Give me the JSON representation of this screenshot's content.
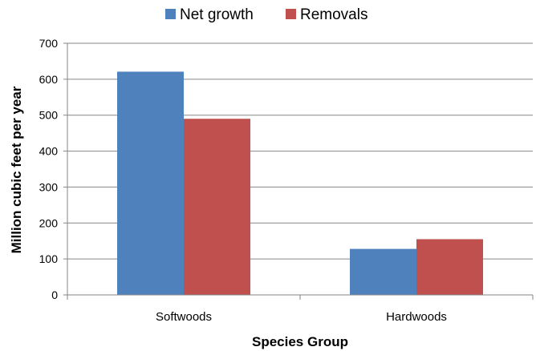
{
  "chart_data": {
    "type": "bar",
    "title": "",
    "xlabel": "Species Group",
    "ylabel": "Million cubic feet per year",
    "categories": [
      "Softwoods",
      "Hardwoods"
    ],
    "series": [
      {
        "name": "Net growth",
        "color": "#4F81BD",
        "values": [
          621,
          128
        ]
      },
      {
        "name": "Removals",
        "color": "#C0504D",
        "values": [
          490,
          155
        ]
      }
    ],
    "ylim": [
      0,
      700
    ],
    "yticks": [
      0,
      100,
      200,
      300,
      400,
      500,
      600,
      700
    ],
    "grid": true,
    "legend_position": "top-center"
  }
}
